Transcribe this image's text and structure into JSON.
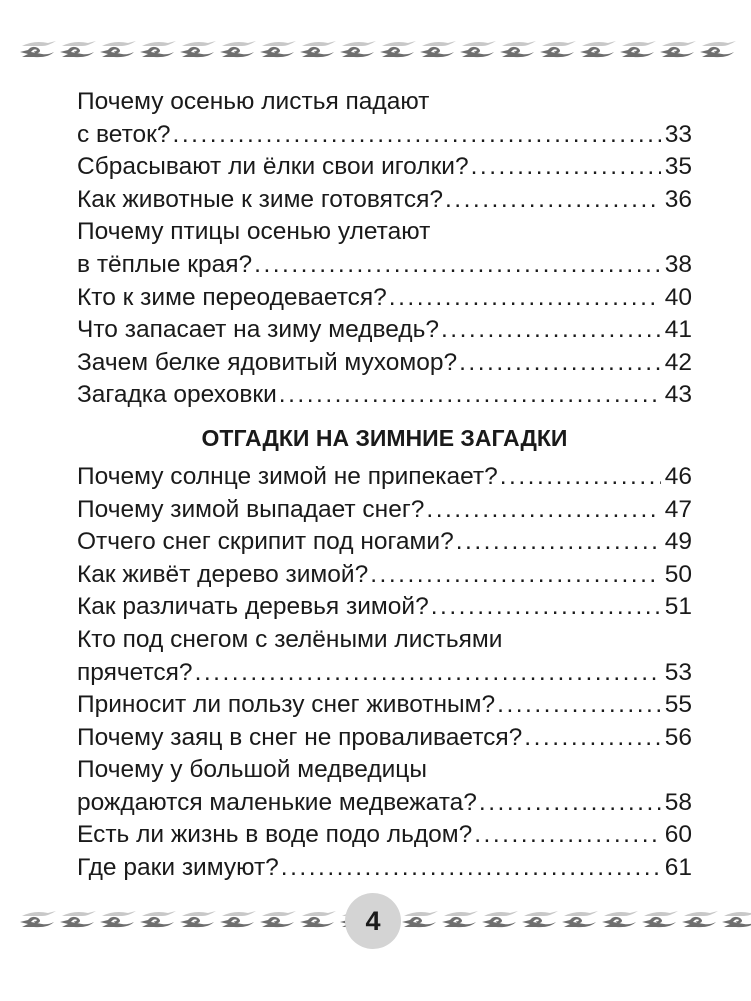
{
  "sections": [
    {
      "heading": "",
      "entries": [
        {
          "lines": [
            "Почему осенью листья падают",
            "с веток?"
          ],
          "page": "33"
        },
        {
          "lines": [
            "Сбрасывают ли ёлки свои иголки?"
          ],
          "page": "35"
        },
        {
          "lines": [
            "Как животные к зиме готовятся?"
          ],
          "page": "36"
        },
        {
          "lines": [
            "Почему птицы осенью улетают",
            "в тёплые края?"
          ],
          "page": "38"
        },
        {
          "lines": [
            "Кто к зиме переодевается?"
          ],
          "page": "40"
        },
        {
          "lines": [
            "Что запасает на зиму медведь?"
          ],
          "page": "41"
        },
        {
          "lines": [
            "Зачем белке ядовитый мухомор?"
          ],
          "page": "42"
        },
        {
          "lines": [
            "Загадка ореховки"
          ],
          "page": "43"
        }
      ]
    },
    {
      "heading": "ОТГАДКИ НА ЗИМНИЕ ЗАГАДКИ",
      "entries": [
        {
          "lines": [
            "Почему солнце зимой не припекает?"
          ],
          "page": "46"
        },
        {
          "lines": [
            "Почему зимой выпадает снег?"
          ],
          "page": "47"
        },
        {
          "lines": [
            "Отчего снег скрипит под ногами?"
          ],
          "page": "49"
        },
        {
          "lines": [
            "Как живёт дерево зимой?"
          ],
          "page": "50"
        },
        {
          "lines": [
            "Как различать деревья зимой?"
          ],
          "page": "51"
        },
        {
          "lines": [
            "Кто под снегом с зелёными листьями",
            "прячется?"
          ],
          "page": "53"
        },
        {
          "lines": [
            "Приносит ли пользу снег животным?"
          ],
          "page": "55"
        },
        {
          "lines": [
            "Почему заяц в снег не проваливается?"
          ],
          "page": "56"
        },
        {
          "lines": [
            "Почему у большой медведицы",
            "рождаются маленькие медвежата?"
          ],
          "page": "58"
        },
        {
          "lines": [
            "Есть ли жизнь в воде подо льдом?"
          ],
          "page": "60"
        },
        {
          "lines": [
            "Где раки зимуют?"
          ],
          "page": "61"
        }
      ]
    }
  ],
  "page_number": "4",
  "ornament_icon": "wave-scroll-border"
}
